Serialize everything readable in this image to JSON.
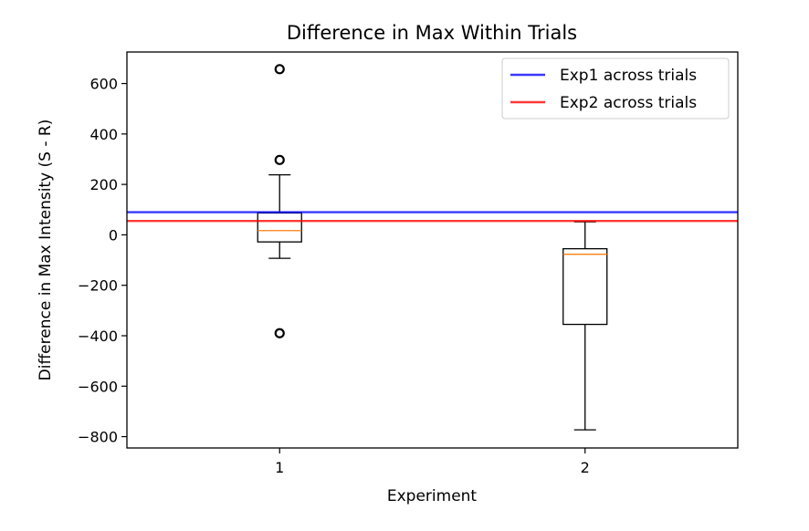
{
  "chart_data": {
    "type": "box",
    "title": "Difference in Max Within Trials",
    "xlabel": "Experiment",
    "ylabel": "Difference in Max Intensity (S - R)",
    "categories": [
      "1",
      "2"
    ],
    "ylim": [
      -845,
      725
    ],
    "xlim": [
      0.5,
      2.5
    ],
    "yticks": [
      -800,
      -600,
      -400,
      -200,
      0,
      200,
      400,
      600
    ],
    "ytick_labels": [
      "−800",
      "−600",
      "−400",
      "−200",
      "0",
      "200",
      "400",
      "600"
    ],
    "boxes": [
      {
        "category": "1",
        "whisker_low": -93,
        "q1": -28,
        "median": 17,
        "q3": 87,
        "whisker_high": 238,
        "outliers": [
          657,
          297,
          -390
        ]
      },
      {
        "category": "2",
        "whisker_low": -773,
        "q1": -355,
        "median": -77,
        "q3": -55,
        "whisker_high": 52,
        "outliers": []
      }
    ],
    "hlines": [
      {
        "name": "Exp1 across trials",
        "y": 90,
        "color": "#0000ff"
      },
      {
        "name": "Exp2 across trials",
        "y": 55,
        "color": "#ff0000"
      }
    ],
    "median_color": "#ff7f0e",
    "legend_position": "top-right",
    "grid": false
  }
}
